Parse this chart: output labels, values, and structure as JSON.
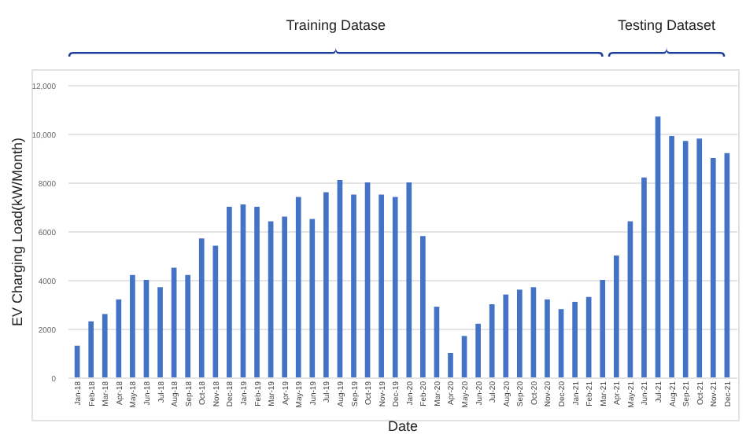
{
  "chart_data": {
    "type": "bar",
    "xlabel": "Date",
    "ylabel": "EV Charging Load(kW/Month)",
    "categories": [
      "Jan-18",
      "Feb-18",
      "Mar-18",
      "Apr-18",
      "May-18",
      "Jun-18",
      "Jul-18",
      "Aug-18",
      "Sep-18",
      "Oct-18",
      "Nov-18",
      "Dec-18",
      "Jan-19",
      "Feb-19",
      "Mar-19",
      "Apr-19",
      "May-19",
      "Jun-19",
      "Jul-19",
      "Aug-19",
      "Sep-19",
      "Oct-19",
      "Nov-19",
      "Dec-19",
      "Jan-20",
      "Feb-20",
      "Mar-20",
      "Apr-20",
      "May-20",
      "Jun-20",
      "Jul-20",
      "Aug-20",
      "Sep-20",
      "Oct-20",
      "Nov-20",
      "Dec-20",
      "Jan-21",
      "Feb-21",
      "Mar-21",
      "Apr-21",
      "May-21",
      "Jun-21",
      "Jul-21",
      "Aug-21",
      "Sep-21",
      "Oct-21",
      "Nov-21",
      "Dec-21"
    ],
    "values": [
      1300,
      2300,
      2600,
      3200,
      4200,
      4000,
      3700,
      4500,
      4200,
      5700,
      5400,
      7000,
      7100,
      7000,
      6400,
      6600,
      7400,
      6500,
      7600,
      8100,
      7500,
      8000,
      7500,
      7400,
      8000,
      5800,
      2900,
      1000,
      1700,
      2200,
      3000,
      3400,
      3600,
      3700,
      3200,
      2800,
      3100,
      3300,
      4000,
      5000,
      6400,
      8200,
      10700,
      9900,
      9700,
      9800,
      9000,
      9200
    ],
    "color": "#4472c4",
    "ylim": [
      0,
      12000
    ],
    "yticks": [
      0,
      2000,
      4000,
      6000,
      8000,
      {
        "value": 10000,
        "label": "10,000"
      },
      {
        "value": 12000,
        "label": "12,000"
      }
    ],
    "grid": "y",
    "annotations": [
      "Training Datase",
      "Testing Dataset"
    ]
  }
}
